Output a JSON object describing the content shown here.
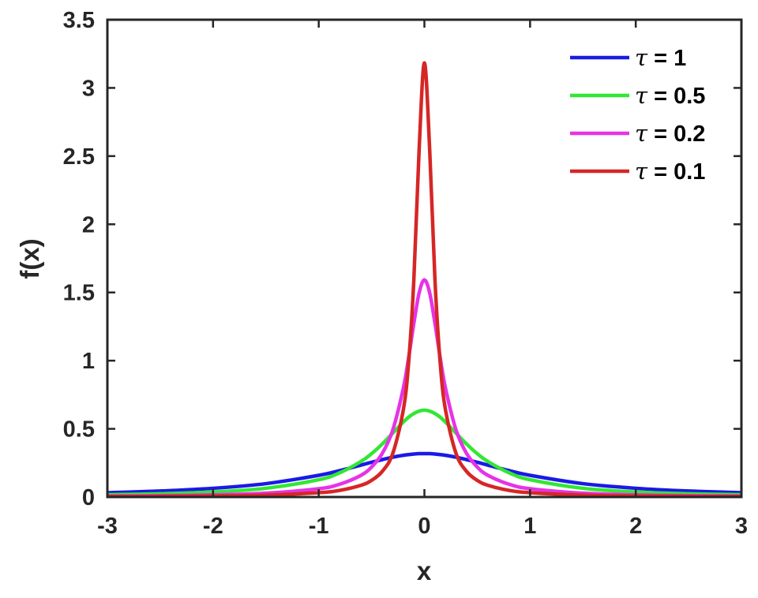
{
  "chart_data": {
    "type": "line",
    "xlabel": "x",
    "ylabel": "f(x)",
    "xlim": [
      -3,
      3
    ],
    "ylim": [
      0,
      3.5
    ],
    "xticks": [
      "-3",
      "-2",
      "-1",
      "0",
      "1",
      "2",
      "3"
    ],
    "yticks": [
      "0",
      "0.5",
      "1",
      "1.5",
      "2",
      "2.5",
      "3",
      "3.5"
    ],
    "grid": false,
    "legend_position": "top-right",
    "x": [
      -3.0,
      -2.5,
      -2.0,
      -1.5,
      -1.0,
      -0.8,
      -0.6,
      -0.5,
      -0.4,
      -0.3,
      -0.2,
      -0.15,
      -0.1,
      -0.05,
      0.0,
      0.05,
      0.1,
      0.15,
      0.2,
      0.3,
      0.4,
      0.5,
      0.6,
      0.8,
      1.0,
      1.5,
      2.0,
      2.5,
      3.0
    ],
    "series": [
      {
        "name": "τ = 1",
        "color": "#1a1ae6",
        "values": [
          0.032,
          0.044,
          0.064,
          0.098,
          0.159,
          0.194,
          0.234,
          0.255,
          0.274,
          0.292,
          0.306,
          0.311,
          0.315,
          0.318,
          0.318,
          0.318,
          0.315,
          0.311,
          0.306,
          0.292,
          0.274,
          0.255,
          0.234,
          0.194,
          0.159,
          0.098,
          0.064,
          0.044,
          0.032
        ]
      },
      {
        "name": "τ = 0.5",
        "color": "#33e633",
        "values": [
          0.017,
          0.024,
          0.037,
          0.064,
          0.127,
          0.178,
          0.261,
          0.318,
          0.388,
          0.468,
          0.549,
          0.585,
          0.612,
          0.63,
          0.637,
          0.63,
          0.612,
          0.585,
          0.549,
          0.468,
          0.388,
          0.318,
          0.261,
          0.178,
          0.127,
          0.064,
          0.037,
          0.024,
          0.017
        ]
      },
      {
        "name": "τ = 0.2",
        "color": "#e633e6",
        "values": [
          0.007,
          0.01,
          0.016,
          0.028,
          0.061,
          0.094,
          0.159,
          0.22,
          0.318,
          0.49,
          0.796,
          1.019,
          1.273,
          1.497,
          1.592,
          1.497,
          1.273,
          1.019,
          0.796,
          0.49,
          0.318,
          0.22,
          0.159,
          0.094,
          0.061,
          0.028,
          0.016,
          0.01,
          0.007
        ]
      },
      {
        "name": "τ = 0.1",
        "color": "#d62626",
        "values": [
          0.004,
          0.005,
          0.008,
          0.014,
          0.032,
          0.049,
          0.086,
          0.122,
          0.187,
          0.318,
          0.637,
          0.979,
          1.592,
          2.546,
          3.183,
          2.546,
          1.592,
          0.979,
          0.637,
          0.318,
          0.187,
          0.122,
          0.086,
          0.049,
          0.032,
          0.014,
          0.008,
          0.005,
          0.004
        ]
      }
    ]
  },
  "legend": {
    "entries": [
      {
        "symbol": "τ",
        "text": " = 1"
      },
      {
        "symbol": "τ",
        "text": " = 0.5"
      },
      {
        "symbol": "τ",
        "text": " = 0.2"
      },
      {
        "symbol": "τ",
        "text": " = 0.1"
      }
    ]
  }
}
